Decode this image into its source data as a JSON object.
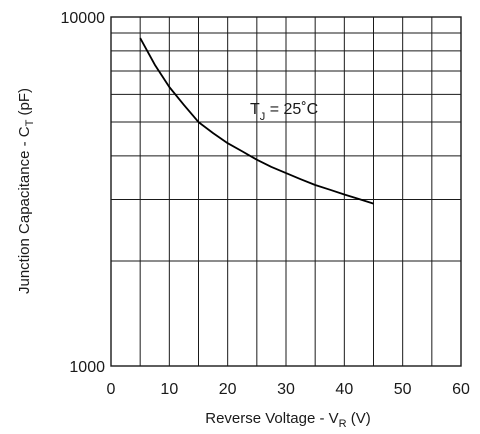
{
  "chart_data": {
    "type": "line",
    "xlabel": {
      "main": "Reverse Voltage - V",
      "sub": "R",
      "tail": " (V)"
    },
    "ylabel": {
      "main": "Junction Capacitance - C",
      "sub": "T",
      "tail": " (pF)"
    },
    "xlim": [
      0,
      60
    ],
    "ylim": [
      1000,
      10000
    ],
    "y_scale": "log",
    "grid": true,
    "x_ticks": [
      "0",
      "10",
      "20",
      "30",
      "40",
      "50",
      "60"
    ],
    "y_ticks": [
      "1000",
      "10000"
    ],
    "annotation": {
      "main": "T",
      "sub": "J",
      "tail": " = 25˚C"
    },
    "colors": {
      "line": "#000000",
      "grid": "#1a1a1a"
    },
    "series": [
      {
        "x": [
          5,
          7.5,
          10,
          12.5,
          15,
          17.5,
          20,
          22.5,
          25,
          27.5,
          30,
          32.5,
          35,
          37.5,
          40,
          42.5,
          45
        ],
        "y": [
          8700,
          7300,
          6300,
          5600,
          5000,
          4650,
          4350,
          4120,
          3900,
          3720,
          3570,
          3430,
          3300,
          3200,
          3100,
          3010,
          2920
        ]
      }
    ]
  }
}
